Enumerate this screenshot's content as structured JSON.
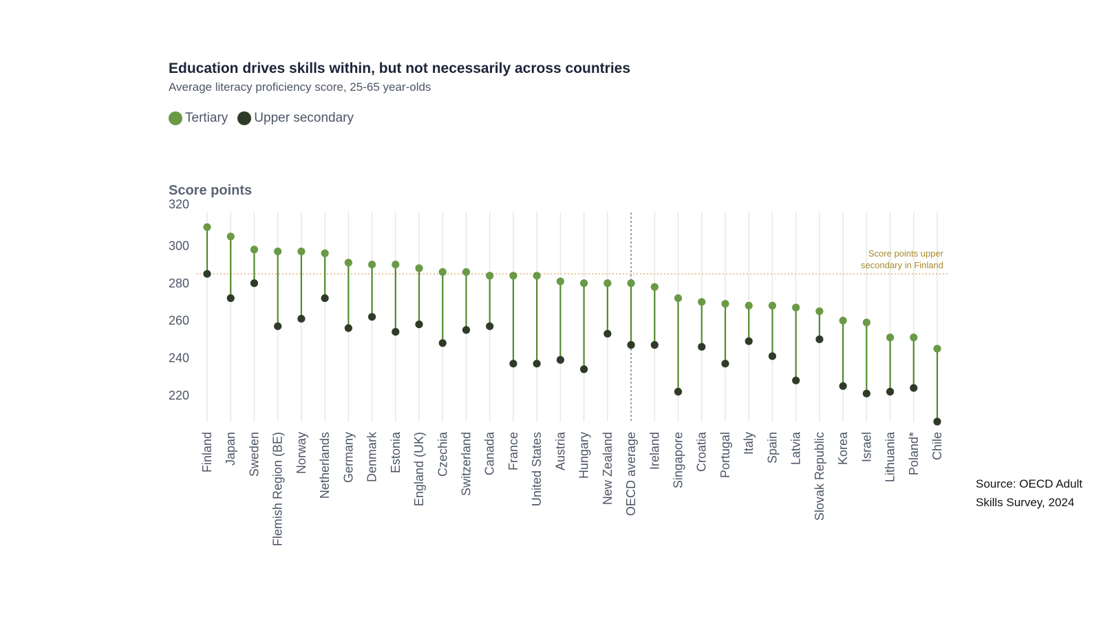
{
  "header": {
    "title": "Education drives skills within, but not necessarily across countries",
    "subtitle": "Average literacy proficiency score, 25-65 year-olds"
  },
  "legend": {
    "tertiary_label": "Tertiary",
    "upper_secondary_label": "Upper secondary"
  },
  "source": {
    "line1": "Source: OECD Adult",
    "line2": "Skills Survey, 2024"
  },
  "colors": {
    "tertiary": "#6a9a45",
    "upper_secondary": "#2f3b28",
    "stem": "#4f8a2c",
    "reference_line": "#e8b27a",
    "reference_text": "#a68a2e",
    "grid": "#e6e6e6"
  },
  "chart_data": {
    "type": "dumbbell",
    "ylabel": "Score points",
    "ylim": [
      206,
      320
    ],
    "yticks": [
      220,
      240,
      260,
      280,
      300,
      320
    ],
    "reference_line": {
      "value": 285,
      "label_line1": "Score points upper",
      "label_line2": "secondary in Finland"
    },
    "highlight_category": "OECD average",
    "categories": [
      "Finland",
      "Japan",
      "Sweden",
      "Flemish Region (BE)",
      "Norway",
      "Netherlands",
      "Germany",
      "Denmark",
      "Estonia",
      "England (UK)",
      "Czechia",
      "Switzerland",
      "Canada",
      "France",
      "United States",
      "Austria",
      "Hungary",
      "New Zealand",
      "OECD average",
      "Ireland",
      "Singapore",
      "Croatia",
      "Portugal",
      "Italy",
      "Spain",
      "Latvia",
      "Slovak Republic",
      "Korea",
      "Israel",
      "Lithuania",
      "Poland*",
      "Chile"
    ],
    "series": [
      {
        "name": "Tertiary",
        "values": [
          310,
          305,
          298,
          297,
          297,
          296,
          291,
          290,
          290,
          288,
          286,
          286,
          284,
          284,
          284,
          281,
          280,
          280,
          280,
          278,
          272,
          270,
          269,
          268,
          268,
          267,
          265,
          260,
          259,
          251,
          251,
          245
        ]
      },
      {
        "name": "Upper secondary",
        "values": [
          285,
          272,
          280,
          257,
          261,
          272,
          256,
          262,
          254,
          258,
          248,
          255,
          257,
          237,
          237,
          239,
          234,
          253,
          247,
          247,
          222,
          246,
          237,
          249,
          241,
          228,
          250,
          225,
          221,
          222,
          224,
          206
        ]
      }
    ]
  }
}
